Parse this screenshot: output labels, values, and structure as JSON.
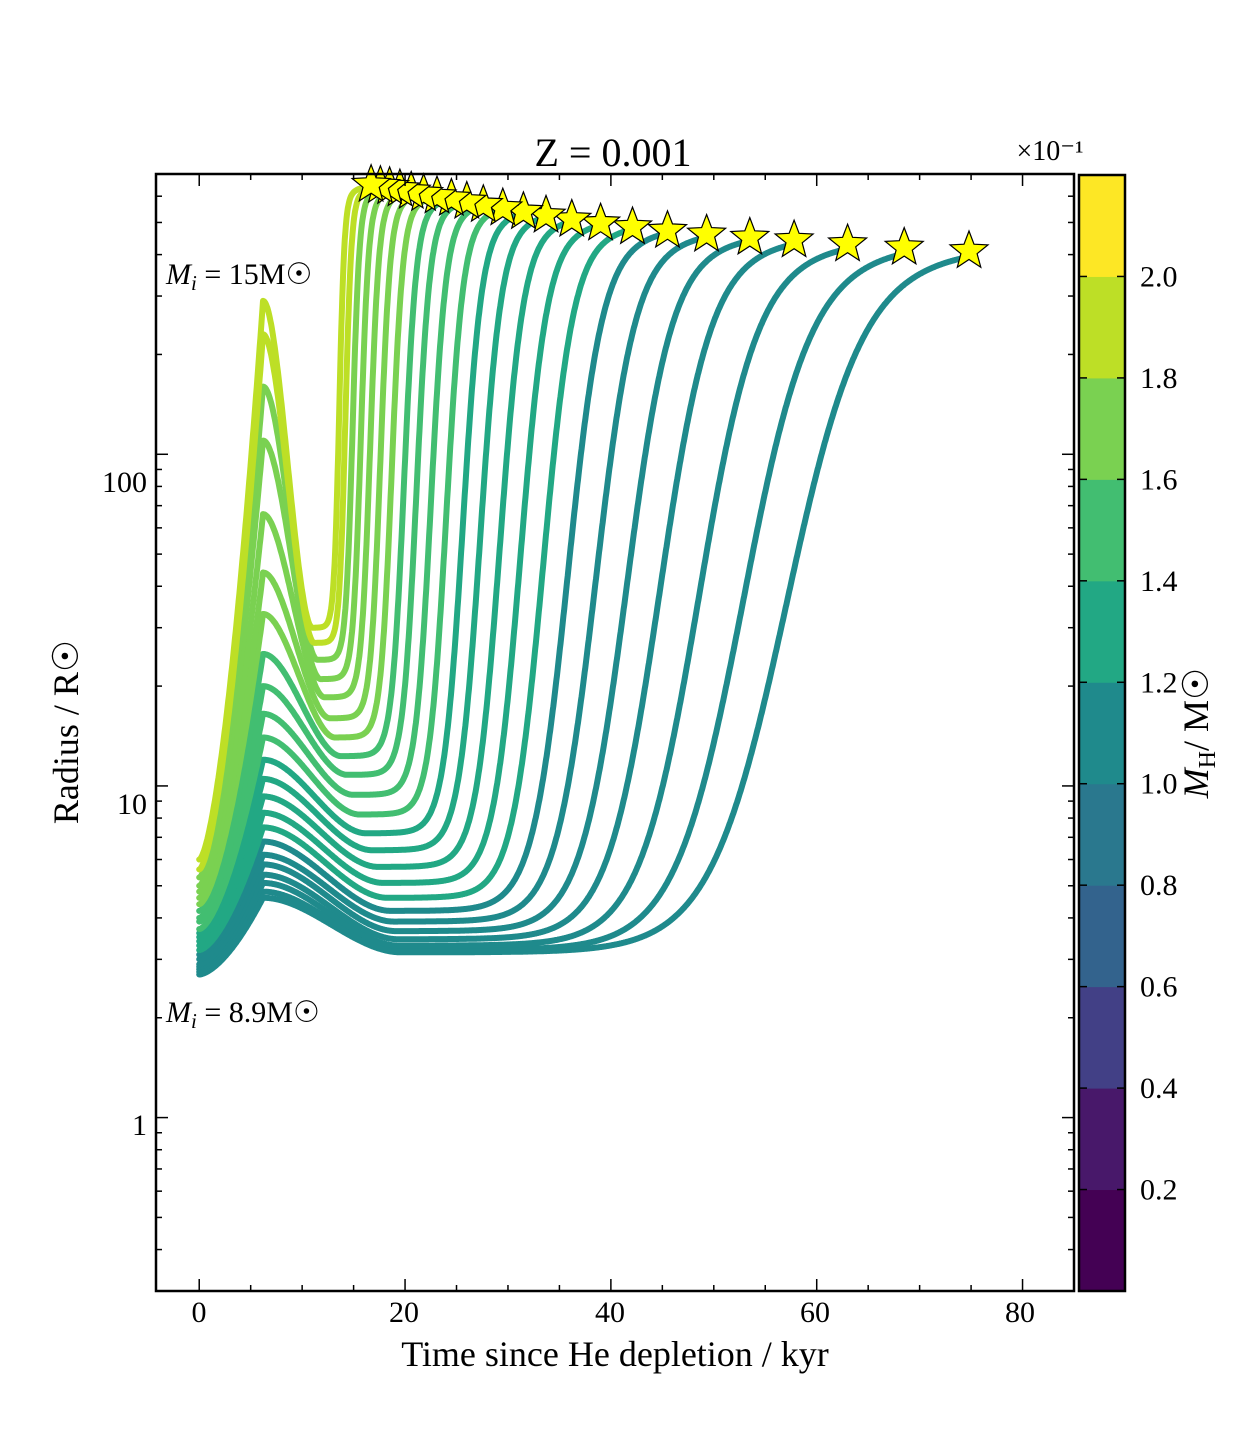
{
  "chart_data": {
    "type": "scatter",
    "title": "Z = 0.001",
    "xlabel": "Time since He depletion / kyr",
    "ylabel": "Radius / R☉",
    "xlim": [
      -4.2,
      85
    ],
    "ylim": [
      0.3,
      700
    ],
    "y_scale": "log",
    "x_ticks": [
      0,
      20,
      40,
      60,
      80
    ],
    "x_tick_labels": [
      "0",
      "20",
      "40",
      "60",
      "80"
    ],
    "y_ticks": [
      1,
      10,
      100
    ],
    "y_tick_labels": [
      "1",
      "10",
      "100"
    ],
    "colorbar": {
      "label": "M_H / M☉",
      "label_main": "M",
      "label_sub": "H",
      "label_tail": "/ M☉",
      "multiplier": "×10⁻¹",
      "range": [
        0,
        2.2
      ],
      "ticks": [
        0.2,
        0.4,
        0.6,
        0.8,
        1.0,
        1.2,
        1.4,
        1.6,
        1.8,
        2.0
      ],
      "tick_labels": [
        "0.2",
        "0.4",
        "0.6",
        "0.8",
        "1.0",
        "1.2",
        "1.4",
        "1.6",
        "1.8",
        "2.0"
      ],
      "band_colors": [
        "#440154",
        "#48186a",
        "#424086",
        "#33638d",
        "#2a788e",
        "#1f8a8c",
        "#22a884",
        "#42be71",
        "#7ad151",
        "#bddf26",
        "#fde725"
      ]
    },
    "annotations": [
      {
        "text_main": "M",
        "text_sub": "i",
        "text_tail": " = 15M☉",
        "text": "M_i = 15M☉"
      },
      {
        "text_main": "M",
        "text_sub": "i",
        "text_tail": " = 8.9M☉",
        "text": "M_i = 8.9M☉"
      }
    ],
    "series": [
      {
        "name": "track-01",
        "mh": 1.85,
        "start_radius": 6.0,
        "bump_peak": 290,
        "min_time": 11.0,
        "min_radius": 30,
        "rise_mid": 13.6,
        "end_time": 16.7,
        "end_radius": 650
      },
      {
        "name": "track-02",
        "mh": 1.82,
        "start_radius": 5.6,
        "bump_peak": 230,
        "min_time": 11.2,
        "min_radius": 27,
        "rise_mid": 14.2,
        "end_time": 17.6,
        "end_radius": 645
      },
      {
        "name": "track-03",
        "mh": 1.78,
        "start_radius": 5.3,
        "bump_peak": 160,
        "min_time": 11.5,
        "min_radius": 24,
        "rise_mid": 14.9,
        "end_time": 18.5,
        "end_radius": 640
      },
      {
        "name": "track-04",
        "mh": 1.74,
        "start_radius": 5.0,
        "bump_peak": 110,
        "min_time": 11.8,
        "min_radius": 21,
        "rise_mid": 15.7,
        "end_time": 19.5,
        "end_radius": 630
      },
      {
        "name": "track-05",
        "mh": 1.7,
        "start_radius": 4.8,
        "bump_peak": 66,
        "min_time": 12.2,
        "min_radius": 18.5,
        "rise_mid": 16.6,
        "end_time": 20.6,
        "end_radius": 620
      },
      {
        "name": "track-06",
        "mh": 1.65,
        "start_radius": 4.6,
        "bump_peak": 44,
        "min_time": 12.7,
        "min_radius": 16,
        "rise_mid": 17.6,
        "end_time": 21.8,
        "end_radius": 610
      },
      {
        "name": "track-07",
        "mh": 1.6,
        "start_radius": 4.4,
        "bump_peak": 33,
        "min_time": 13.2,
        "min_radius": 14,
        "rise_mid": 18.7,
        "end_time": 23.1,
        "end_radius": 600
      },
      {
        "name": "track-08",
        "mh": 1.55,
        "start_radius": 4.2,
        "bump_peak": 25,
        "min_time": 13.8,
        "min_radius": 12.3,
        "rise_mid": 19.9,
        "end_time": 24.5,
        "end_radius": 590
      },
      {
        "name": "track-09",
        "mh": 1.5,
        "start_radius": 4.0,
        "bump_peak": 20,
        "min_time": 14.4,
        "min_radius": 10.8,
        "rise_mid": 21.1,
        "end_time": 26.0,
        "end_radius": 578
      },
      {
        "name": "track-10",
        "mh": 1.46,
        "start_radius": 3.9,
        "bump_peak": 16.5,
        "min_time": 15.0,
        "min_radius": 9.4,
        "rise_mid": 22.5,
        "end_time": 27.6,
        "end_radius": 565
      },
      {
        "name": "track-11",
        "mh": 1.42,
        "start_radius": 3.7,
        "bump_peak": 14,
        "min_time": 15.6,
        "min_radius": 8.2,
        "rise_mid": 24.0,
        "end_time": 29.5,
        "end_radius": 552
      },
      {
        "name": "track-12",
        "mh": 1.38,
        "start_radius": 3.6,
        "bump_peak": 12,
        "min_time": 16.2,
        "min_radius": 7.2,
        "rise_mid": 25.6,
        "end_time": 31.5,
        "end_radius": 538
      },
      {
        "name": "track-13",
        "mh": 1.34,
        "start_radius": 3.5,
        "bump_peak": 10.5,
        "min_time": 16.8,
        "min_radius": 6.4,
        "rise_mid": 27.3,
        "end_time": 33.7,
        "end_radius": 525
      },
      {
        "name": "track-14",
        "mh": 1.3,
        "start_radius": 3.4,
        "bump_peak": 9.3,
        "min_time": 17.4,
        "min_radius": 5.7,
        "rise_mid": 29.2,
        "end_time": 36.2,
        "end_radius": 510
      },
      {
        "name": "track-15",
        "mh": 1.26,
        "start_radius": 3.3,
        "bump_peak": 8.3,
        "min_time": 17.9,
        "min_radius": 5.1,
        "rise_mid": 31.2,
        "end_time": 39.0,
        "end_radius": 497
      },
      {
        "name": "track-16",
        "mh": 1.22,
        "start_radius": 3.2,
        "bump_peak": 7.5,
        "min_time": 18.3,
        "min_radius": 4.6,
        "rise_mid": 33.4,
        "end_time": 42.1,
        "end_radius": 484
      },
      {
        "name": "track-17",
        "mh": 1.18,
        "start_radius": 3.1,
        "bump_peak": 6.8,
        "min_time": 18.6,
        "min_radius": 4.2,
        "rise_mid": 35.8,
        "end_time": 45.5,
        "end_radius": 472
      },
      {
        "name": "track-18",
        "mh": 1.14,
        "start_radius": 3.0,
        "bump_peak": 6.2,
        "min_time": 18.9,
        "min_radius": 3.9,
        "rise_mid": 38.5,
        "end_time": 49.3,
        "end_radius": 460
      },
      {
        "name": "track-19",
        "mh": 1.1,
        "start_radius": 2.9,
        "bump_peak": 5.8,
        "min_time": 19.1,
        "min_radius": 3.65,
        "rise_mid": 41.5,
        "end_time": 53.5,
        "end_radius": 450
      },
      {
        "name": "track-20",
        "mh": 1.07,
        "start_radius": 2.85,
        "bump_peak": 5.4,
        "min_time": 19.3,
        "min_radius": 3.45,
        "rise_mid": 44.7,
        "end_time": 57.8,
        "end_radius": 442
      },
      {
        "name": "track-21",
        "mh": 1.04,
        "start_radius": 2.8,
        "bump_peak": 5.1,
        "min_time": 19.4,
        "min_radius": 3.3,
        "rise_mid": 48.5,
        "end_time": 63.0,
        "end_radius": 430
      },
      {
        "name": "track-22",
        "mh": 1.02,
        "start_radius": 2.75,
        "bump_peak": 4.8,
        "min_time": 19.5,
        "min_radius": 3.2,
        "rise_mid": 52.8,
        "end_time": 68.5,
        "end_radius": 420
      },
      {
        "name": "track-23",
        "mh": 1.0,
        "start_radius": 2.7,
        "bump_peak": 4.6,
        "min_time": 19.6,
        "min_radius": 3.15,
        "rise_mid": 57.0,
        "end_time": 74.8,
        "end_radius": 410
      }
    ]
  }
}
